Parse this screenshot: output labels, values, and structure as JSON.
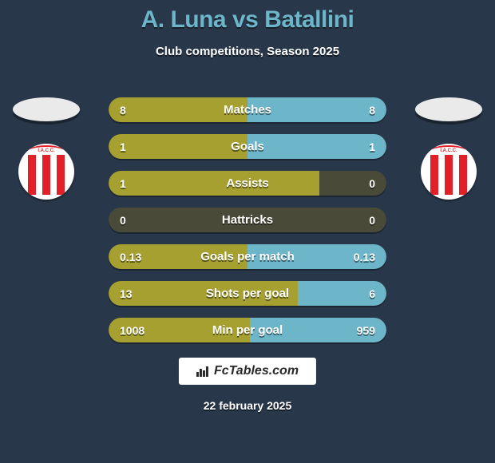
{
  "background_color": "#29374a",
  "title": {
    "text": "A. Luna vs Batallini",
    "color": "#6db5c9",
    "fontsize": 30,
    "fontweight": 800
  },
  "subtitle": {
    "text": "Club competitions, Season 2025",
    "color": "#ffffff",
    "fontsize": 15,
    "fontweight": 700
  },
  "left_player": {
    "name": "A. Luna",
    "club_abbrev": "I.A.C.C."
  },
  "right_player": {
    "name": "Batallini",
    "club_abbrev": "I.A.C.C."
  },
  "colors": {
    "bar_left": "#a6a031",
    "bar_right": "#6db5c9",
    "bar_track": "#4a4a38",
    "text": "#ffffff",
    "club_stripe": "#e22028",
    "club_bg": "#ffffff"
  },
  "row_style": {
    "height": 31,
    "radius": 16,
    "gap": 15,
    "label_fontsize": 15,
    "value_fontsize": 14
  },
  "stats": [
    {
      "label": "Matches",
      "left_value": "8",
      "right_value": "8",
      "left_pct": 50,
      "right_pct": 50
    },
    {
      "label": "Goals",
      "left_value": "1",
      "right_value": "1",
      "left_pct": 50,
      "right_pct": 50
    },
    {
      "label": "Assists",
      "left_value": "1",
      "right_value": "0",
      "left_pct": 76,
      "right_pct": 0
    },
    {
      "label": "Hattricks",
      "left_value": "0",
      "right_value": "0",
      "left_pct": 0,
      "right_pct": 0
    },
    {
      "label": "Goals per match",
      "left_value": "0.13",
      "right_value": "0.13",
      "left_pct": 50,
      "right_pct": 50
    },
    {
      "label": "Shots per goal",
      "left_value": "13",
      "right_value": "6",
      "left_pct": 68,
      "right_pct": 32
    },
    {
      "label": "Min per goal",
      "left_value": "1008",
      "right_value": "959",
      "left_pct": 51,
      "right_pct": 49
    }
  ],
  "footer": {
    "brand": "FcTables.com",
    "date": "22 february 2025"
  }
}
